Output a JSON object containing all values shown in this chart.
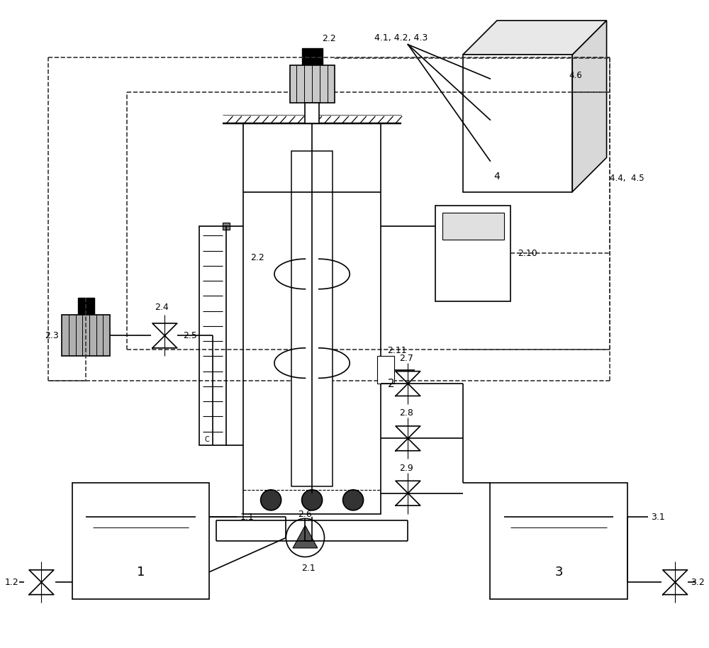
{
  "bg_color": "#ffffff",
  "lc": "#000000",
  "dc": "#333333",
  "lw": 1.2,
  "figsize": [
    10.0,
    9.14
  ],
  "dpi": 100,
  "labels": {
    "box1": "1",
    "box2": "2",
    "box3": "3",
    "box4": "4",
    "lbl_1_1": "1.1",
    "lbl_1_2": "1.2",
    "lbl_2_1": "2.1",
    "lbl_2_2": "2.2",
    "lbl_2_3": "2.3",
    "lbl_2_4": "2.4",
    "lbl_2_5": "2.5",
    "lbl_2_6": "2.6",
    "lbl_2_7": "2.7",
    "lbl_2_8": "2.8",
    "lbl_2_9": "2.9",
    "lbl_2_10": "2.10",
    "lbl_2_11": "2.11",
    "lbl_4_1": "4.1, 4.2, 4.3",
    "lbl_4_4": "4.4,  4.5",
    "lbl_4_6": "4.6",
    "lbl_3_1": "3.1",
    "lbl_3_2": "3.2"
  }
}
